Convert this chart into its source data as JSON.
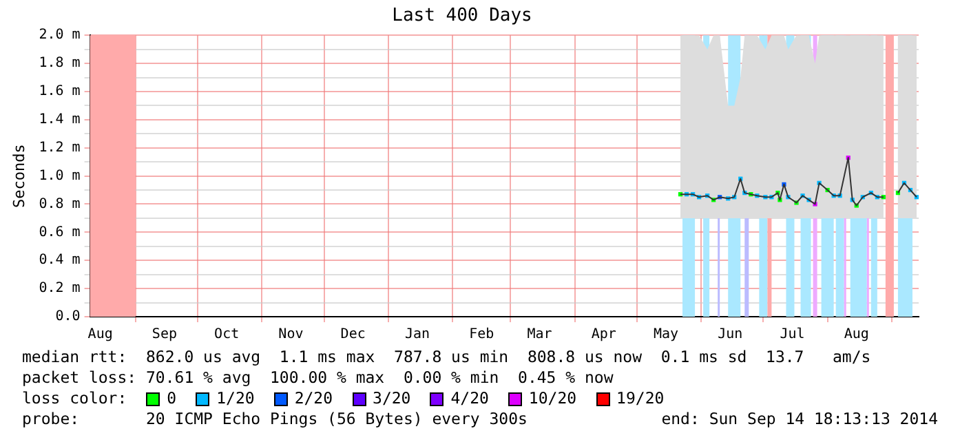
{
  "chart_data": {
    "type": "line",
    "title": "Last 400 Days",
    "ylabel": "Seconds",
    "xlim": [
      "2013-08-10",
      "2014-09-14"
    ],
    "xticks": [
      {
        "value": "2013-08-15",
        "label": "Aug"
      },
      {
        "value": "2013-09-01",
        "label": null
      },
      {
        "value": "2013-09-15",
        "label": "Sep"
      },
      {
        "value": "2013-10-01",
        "label": null
      },
      {
        "value": "2013-10-15",
        "label": "Oct"
      },
      {
        "value": "2013-11-01",
        "label": null
      },
      {
        "value": "2013-11-15",
        "label": "Nov"
      },
      {
        "value": "2013-12-01",
        "label": null
      },
      {
        "value": "2013-12-15",
        "label": "Dec"
      },
      {
        "value": "2014-01-01",
        "label": null
      },
      {
        "value": "2014-01-15",
        "label": "Jan"
      },
      {
        "value": "2014-02-01",
        "label": null
      },
      {
        "value": "2014-02-15",
        "label": "Feb"
      },
      {
        "value": "2014-03-01",
        "label": null
      },
      {
        "value": "2014-03-15",
        "label": "Mar"
      },
      {
        "value": "2014-04-01",
        "label": null
      },
      {
        "value": "2014-04-15",
        "label": "Apr"
      },
      {
        "value": "2014-05-01",
        "label": null
      },
      {
        "value": "2014-05-15",
        "label": "May"
      },
      {
        "value": "2014-06-01",
        "label": null
      },
      {
        "value": "2014-06-15",
        "label": "Jun"
      },
      {
        "value": "2014-07-01",
        "label": null
      },
      {
        "value": "2014-07-15",
        "label": "Jul"
      },
      {
        "value": "2014-08-01",
        "label": null
      },
      {
        "value": "2014-08-15",
        "label": "Aug"
      },
      {
        "value": "2014-09-01",
        "label": null
      }
    ],
    "ylim": [
      0,
      2.0
    ],
    "yticks": [
      {
        "value": 0,
        "label": "0.0"
      },
      {
        "value": 0.1,
        "label": null
      },
      {
        "value": 0.2,
        "label": "0.2 m"
      },
      {
        "value": 0.3,
        "label": null
      },
      {
        "value": 0.4,
        "label": "0.4 m"
      },
      {
        "value": 0.5,
        "label": null
      },
      {
        "value": 0.6,
        "label": "0.6 m"
      },
      {
        "value": 0.7,
        "label": null
      },
      {
        "value": 0.8,
        "label": "0.8 m"
      },
      {
        "value": 0.9,
        "label": null
      },
      {
        "value": 1.0,
        "label": "1.0 m"
      },
      {
        "value": 1.1,
        "label": null
      },
      {
        "value": 1.2,
        "label": "1.2 m"
      },
      {
        "value": 1.3,
        "label": null
      },
      {
        "value": 1.4,
        "label": "1.4 m"
      },
      {
        "value": 1.5,
        "label": null
      },
      {
        "value": 1.6,
        "label": "1.6 m"
      },
      {
        "value": 1.7,
        "label": null
      },
      {
        "value": 1.8,
        "label": "1.8 m"
      },
      {
        "value": 1.9,
        "label": null
      },
      {
        "value": 2.0,
        "label": "2.0 m"
      }
    ],
    "grid": true,
    "legend": "bottom",
    "legend_title": "loss color:",
    "bands": [
      {
        "axis": "x",
        "from": "2013-08-10",
        "to": "2013-09-01",
        "color": "#ffaaaa"
      },
      {
        "axis": "x",
        "from": "2014-05-23",
        "to": "2014-05-29",
        "color": "#aae8ff"
      },
      {
        "axis": "x",
        "from": "2014-06-02",
        "to": "2014-06-05",
        "color": "#aae8ff"
      },
      {
        "axis": "x",
        "from": "2014-06-09",
        "to": "2014-06-10",
        "color": "#bbbbff"
      },
      {
        "axis": "x",
        "from": "2014-06-14",
        "to": "2014-06-20",
        "color": "#aae8ff"
      },
      {
        "axis": "x",
        "from": "2014-06-22",
        "to": "2014-06-24",
        "color": "#bbbbff"
      },
      {
        "axis": "x",
        "from": "2014-06-29",
        "to": "2014-07-03",
        "color": "#aae8ff"
      },
      {
        "axis": "x",
        "from": "2014-07-03",
        "to": "2014-07-05",
        "color": "#ffaaaa"
      },
      {
        "axis": "x",
        "from": "2014-07-12",
        "to": "2014-07-16",
        "color": "#aae8ff"
      },
      {
        "axis": "x",
        "from": "2014-07-19",
        "to": "2014-07-24",
        "color": "#aae8ff"
      },
      {
        "axis": "x",
        "from": "2014-07-25",
        "to": "2014-07-27",
        "color": "#eeaaff"
      },
      {
        "axis": "x",
        "from": "2014-07-29",
        "to": "2014-08-04",
        "color": "#aae8ff"
      },
      {
        "axis": "x",
        "from": "2014-08-05",
        "to": "2014-08-09",
        "color": "#aae8ff"
      },
      {
        "axis": "x",
        "from": "2014-08-09",
        "to": "2014-08-10",
        "color": "#eeaaff"
      },
      {
        "axis": "x",
        "from": "2014-08-12",
        "to": "2014-08-20",
        "color": "#aae8ff"
      },
      {
        "axis": "x",
        "from": "2014-08-20",
        "to": "2014-08-21",
        "color": "#eeaaff"
      },
      {
        "axis": "x",
        "from": "2014-08-22",
        "to": "2014-08-25",
        "color": "#aae8ff"
      },
      {
        "axis": "x",
        "from": "2014-08-29",
        "to": "2014-09-02",
        "color": "#ffaaaa"
      },
      {
        "axis": "x",
        "from": "2014-09-04",
        "to": "2014-09-11",
        "color": "#aae8ff"
      }
    ],
    "series": [
      {
        "color": "#333333",
        "x": [
          "2014-05-22",
          "2014-05-25",
          "2014-05-28",
          "2014-05-31",
          "2014-06-04",
          "2014-06-07",
          "2014-06-10",
          "2014-06-14",
          "2014-06-17",
          "2014-06-20",
          "2014-06-22",
          "2014-06-25",
          "2014-06-28",
          "2014-07-02",
          "2014-07-05",
          "2014-07-08",
          "2014-07-09",
          "2014-07-11",
          "2014-07-13",
          "2014-07-17",
          "2014-07-20",
          "2014-07-23",
          "2014-07-26",
          "2014-07-28",
          "2014-08-01",
          "2014-08-04",
          "2014-08-07",
          "2014-08-11",
          "2014-08-13",
          "2014-08-15",
          "2014-08-18",
          "2014-08-22",
          "2014-08-25",
          "2014-08-28",
          "2014-08-31",
          "2014-09-04",
          "2014-09-07",
          "2014-09-10",
          "2014-09-13"
        ],
        "values": [
          0.87,
          0.87,
          0.87,
          0.85,
          0.86,
          0.83,
          0.85,
          0.84,
          0.85,
          0.98,
          0.88,
          0.87,
          0.86,
          0.85,
          0.85,
          0.88,
          0.83,
          0.94,
          0.85,
          0.81,
          0.86,
          0.83,
          0.8,
          0.95,
          0.9,
          0.86,
          0.86,
          1.13,
          0.83,
          0.79,
          0.85,
          0.88,
          0.85,
          0.85,
          null,
          0.88,
          0.95,
          0.9,
          0.85
        ],
        "lower": [
          0.7,
          0.7,
          0.7,
          0.7,
          0.7,
          0.7,
          0.7,
          0.7,
          0.7,
          0.7,
          0.7,
          0.7,
          0.7,
          0.7,
          0.7,
          0.7,
          0.7,
          0.7,
          0.7,
          0.7,
          0.7,
          0.7,
          0.7,
          0.7,
          0.7,
          0.7,
          0.7,
          0.7,
          0.7,
          0.7,
          0.7,
          0.7,
          0.7,
          0.7,
          null,
          0.7,
          0.7,
          0.7,
          0.7
        ],
        "upper": [
          2.0,
          2.0,
          2.0,
          2.0,
          1.9,
          2.0,
          2.0,
          1.5,
          1.5,
          1.7,
          2.0,
          2.0,
          2.0,
          1.9,
          2.0,
          2.0,
          2.0,
          2.0,
          1.9,
          2.0,
          2.0,
          2.0,
          1.8,
          2.0,
          2.0,
          2.0,
          2.0,
          2.0,
          2.0,
          2.0,
          2.0,
          2.0,
          2.0,
          2.0,
          null,
          2.0,
          2.0,
          2.0,
          2.0
        ]
      },
      {
        "type": "scatter",
        "marker": "square",
        "name": "0",
        "color": "#00ff00",
        "x": [
          "2014-05-22",
          "2014-06-07",
          "2014-06-25",
          "2014-07-08",
          "2014-07-09",
          "2014-07-17",
          "2014-08-01",
          "2014-08-15",
          "2014-08-28",
          "2014-09-04"
        ],
        "values": [
          0.87,
          0.83,
          0.87,
          0.88,
          0.83,
          0.81,
          0.9,
          0.79,
          0.85,
          0.88
        ]
      },
      {
        "type": "scatter",
        "marker": "square",
        "name": "1/20",
        "color": "#00b8ff",
        "x": [
          "2014-05-25",
          "2014-05-28",
          "2014-05-31",
          "2014-06-04",
          "2014-06-14",
          "2014-06-17",
          "2014-06-20",
          "2014-06-22",
          "2014-06-28",
          "2014-07-02",
          "2014-07-05",
          "2014-07-13",
          "2014-07-20",
          "2014-07-23",
          "2014-07-28",
          "2014-08-04",
          "2014-08-07",
          "2014-08-13",
          "2014-08-18",
          "2014-08-22",
          "2014-08-25",
          "2014-09-07",
          "2014-09-10",
          "2014-09-13"
        ],
        "values": [
          0.87,
          0.87,
          0.85,
          0.86,
          0.84,
          0.85,
          0.98,
          0.88,
          0.86,
          0.85,
          0.85,
          0.85,
          0.86,
          0.83,
          0.95,
          0.86,
          0.86,
          0.83,
          0.85,
          0.88,
          0.85,
          0.95,
          0.9,
          0.85
        ]
      },
      {
        "type": "scatter",
        "marker": "square",
        "name": "2/20",
        "color": "#0059ff",
        "x": [
          "2014-06-10",
          "2014-07-11"
        ],
        "values": [
          0.85,
          0.94
        ]
      },
      {
        "type": "scatter",
        "marker": "square",
        "name": "3/20",
        "color": "#5e00ff"
      },
      {
        "type": "scatter",
        "marker": "square",
        "name": "4/20",
        "color": "#7e00ff"
      },
      {
        "type": "scatter",
        "marker": "square",
        "name": "10/20",
        "color": "#dd00ff",
        "x": [
          "2014-07-26",
          "2014-08-11"
        ],
        "values": [
          0.8,
          1.13
        ]
      },
      {
        "type": "scatter",
        "marker": "square",
        "name": "19/20",
        "color": "#ff0000"
      }
    ],
    "annotations": [
      "median rtt:  862.0 us avg  1.1 ms max  787.8 us min  808.8 us now  0.1 ms sd  13.7   am/s",
      "packet loss: 70.61 % avg  100.00 % max  0.00 % min  0.45 % now",
      "probe:       20 ICMP Echo Pings (56 Bytes) every 300s",
      "end: Sun Sep 14 18:13:13 2014"
    ]
  }
}
